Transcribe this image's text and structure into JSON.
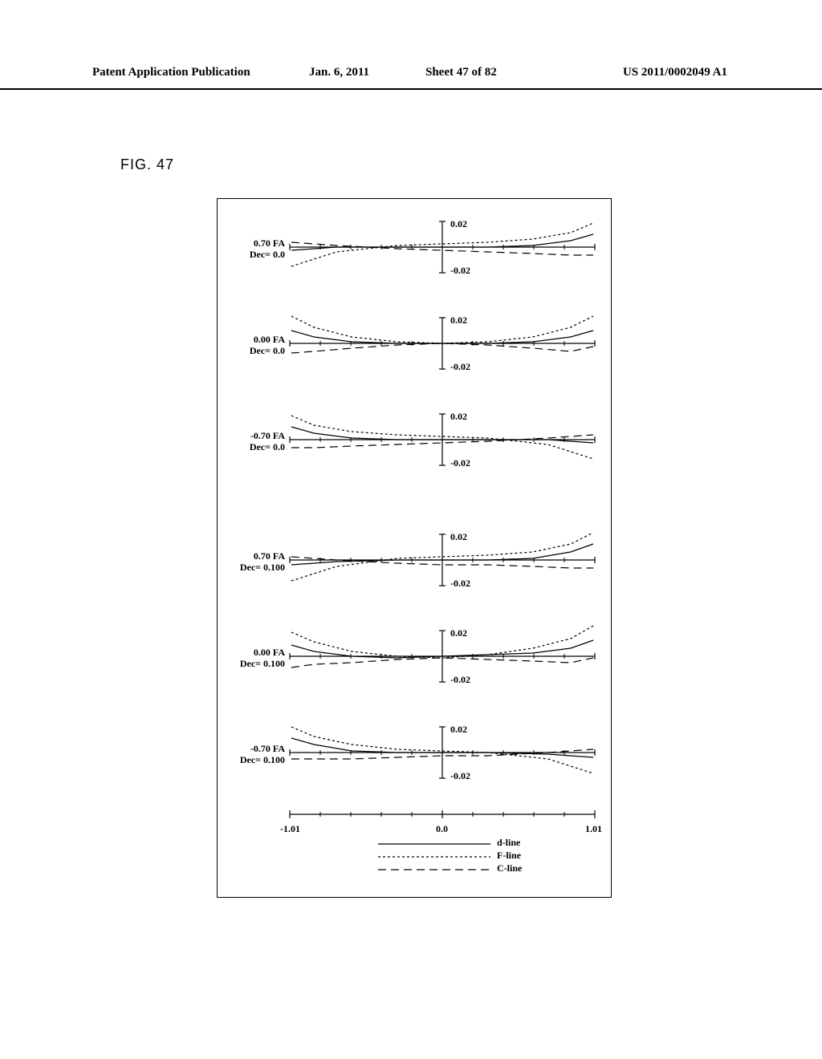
{
  "header": {
    "left": "Patent Application Publication",
    "date": "Jan. 6, 2011",
    "sheet": "Sheet 47 of 82",
    "pubno": "US 2011/0002049 A1"
  },
  "figure_label": "FIG. 47",
  "chart": {
    "x_range": [
      -1.01,
      1.01
    ],
    "y_range": [
      -0.02,
      0.02
    ],
    "y_tick_top": "0.02",
    "y_tick_bottom": "-0.02",
    "x_ticks": [
      {
        "value": -1.01,
        "label": "-1.01"
      },
      {
        "value": 0.0,
        "label": "0.0"
      },
      {
        "value": 1.01,
        "label": "1.01"
      }
    ],
    "subplots": [
      {
        "fa": "0.70 FA",
        "dec": "Dec= 0.0",
        "d": [
          [
            -1,
            -0.002
          ],
          [
            -0.7,
            0.0
          ],
          [
            -0.3,
            0.0
          ],
          [
            0,
            0.0
          ],
          [
            0.3,
            0.0
          ],
          [
            0.6,
            0.001
          ],
          [
            0.85,
            0.004
          ],
          [
            1,
            0.008
          ]
        ],
        "f": [
          [
            -1,
            -0.012
          ],
          [
            -0.7,
            -0.003
          ],
          [
            -0.3,
            0.001
          ],
          [
            0,
            0.002
          ],
          [
            0.3,
            0.003
          ],
          [
            0.6,
            0.005
          ],
          [
            0.85,
            0.009
          ],
          [
            1,
            0.015
          ]
        ],
        "c": [
          [
            -1,
            0.003
          ],
          [
            -0.7,
            0.001
          ],
          [
            -0.3,
            -0.001
          ],
          [
            0,
            -0.002
          ],
          [
            0.3,
            -0.003
          ],
          [
            0.6,
            -0.004
          ],
          [
            0.85,
            -0.005
          ],
          [
            1,
            -0.005
          ]
        ]
      },
      {
        "fa": "0.00 FA",
        "dec": "Dec= 0.0",
        "d": [
          [
            -1,
            0.008
          ],
          [
            -0.85,
            0.004
          ],
          [
            -0.6,
            0.001
          ],
          [
            -0.3,
            0.0
          ],
          [
            0,
            0.0
          ],
          [
            0.3,
            0.0
          ],
          [
            0.6,
            0.001
          ],
          [
            0.85,
            0.004
          ],
          [
            1,
            0.008
          ]
        ],
        "f": [
          [
            -1,
            0.017
          ],
          [
            -0.85,
            0.01
          ],
          [
            -0.6,
            0.004
          ],
          [
            -0.3,
            0.001
          ],
          [
            0,
            0.0
          ],
          [
            0.3,
            0.001
          ],
          [
            0.6,
            0.004
          ],
          [
            0.85,
            0.01
          ],
          [
            1,
            0.017
          ]
        ],
        "c": [
          [
            -1,
            -0.006
          ],
          [
            -0.85,
            -0.005
          ],
          [
            -0.6,
            -0.003
          ],
          [
            -0.3,
            -0.001
          ],
          [
            0,
            0.0
          ],
          [
            0.3,
            -0.001
          ],
          [
            0.6,
            -0.003
          ],
          [
            0.85,
            -0.005
          ],
          [
            1,
            -0.002
          ]
        ]
      },
      {
        "fa": "-0.70 FA",
        "dec": "Dec= 0.0",
        "d": [
          [
            -1,
            0.008
          ],
          [
            -0.85,
            0.004
          ],
          [
            -0.6,
            0.001
          ],
          [
            -0.3,
            0.0
          ],
          [
            0,
            0.0
          ],
          [
            0.3,
            0.0
          ],
          [
            0.7,
            0.0
          ],
          [
            1,
            -0.002
          ]
        ],
        "f": [
          [
            -1,
            0.015
          ],
          [
            -0.85,
            0.009
          ],
          [
            -0.6,
            0.005
          ],
          [
            -0.3,
            0.003
          ],
          [
            0,
            0.002
          ],
          [
            0.3,
            0.001
          ],
          [
            0.7,
            -0.003
          ],
          [
            1,
            -0.012
          ]
        ],
        "c": [
          [
            -1,
            -0.005
          ],
          [
            -0.85,
            -0.005
          ],
          [
            -0.6,
            -0.004
          ],
          [
            -0.3,
            -0.003
          ],
          [
            0,
            -0.002
          ],
          [
            0.3,
            -0.001
          ],
          [
            0.7,
            0.001
          ],
          [
            1,
            0.003
          ]
        ]
      },
      {
        "fa": "0.70 FA",
        "dec": "Dec= 0.100",
        "d": [
          [
            -1,
            -0.003
          ],
          [
            -0.7,
            -0.001
          ],
          [
            -0.3,
            0.0
          ],
          [
            0,
            0.0
          ],
          [
            0.3,
            0.0
          ],
          [
            0.6,
            0.001
          ],
          [
            0.85,
            0.005
          ],
          [
            1,
            0.01
          ]
        ],
        "f": [
          [
            -1,
            -0.013
          ],
          [
            -0.7,
            -0.004
          ],
          [
            -0.3,
            0.001
          ],
          [
            0,
            0.002
          ],
          [
            0.3,
            0.003
          ],
          [
            0.6,
            0.005
          ],
          [
            0.85,
            0.01
          ],
          [
            1,
            0.017
          ]
        ],
        "c": [
          [
            -1,
            0.002
          ],
          [
            -0.7,
            0.0
          ],
          [
            -0.3,
            -0.002
          ],
          [
            0,
            -0.003
          ],
          [
            0.3,
            -0.003
          ],
          [
            0.6,
            -0.004
          ],
          [
            0.85,
            -0.005
          ],
          [
            1,
            -0.005
          ]
        ]
      },
      {
        "fa": "0.00 FA",
        "dec": "Dec= 0.100",
        "d": [
          [
            -1,
            0.007
          ],
          [
            -0.85,
            0.003
          ],
          [
            -0.6,
            0.0
          ],
          [
            -0.3,
            -0.001
          ],
          [
            0,
            0.0
          ],
          [
            0.3,
            0.001
          ],
          [
            0.6,
            0.002
          ],
          [
            0.85,
            0.005
          ],
          [
            1,
            0.01
          ]
        ],
        "f": [
          [
            -1,
            0.015
          ],
          [
            -0.85,
            0.009
          ],
          [
            -0.6,
            0.003
          ],
          [
            -0.3,
            0.0
          ],
          [
            0,
            -0.001
          ],
          [
            0.3,
            0.001
          ],
          [
            0.6,
            0.005
          ],
          [
            0.85,
            0.011
          ],
          [
            1,
            0.019
          ]
        ],
        "c": [
          [
            -1,
            -0.007
          ],
          [
            -0.85,
            -0.005
          ],
          [
            -0.6,
            -0.004
          ],
          [
            -0.3,
            -0.002
          ],
          [
            0,
            -0.001
          ],
          [
            0.3,
            -0.002
          ],
          [
            0.6,
            -0.003
          ],
          [
            0.85,
            -0.004
          ],
          [
            1,
            -0.001
          ]
        ]
      },
      {
        "fa": "-0.70 FA",
        "dec": "Dec= 0.100",
        "d": [
          [
            -1,
            0.009
          ],
          [
            -0.85,
            0.005
          ],
          [
            -0.6,
            0.001
          ],
          [
            -0.3,
            0.0
          ],
          [
            0,
            0.0
          ],
          [
            0.3,
            0.0
          ],
          [
            0.7,
            -0.001
          ],
          [
            1,
            -0.003
          ]
        ],
        "f": [
          [
            -1,
            0.016
          ],
          [
            -0.85,
            0.01
          ],
          [
            -0.6,
            0.005
          ],
          [
            -0.3,
            0.002
          ],
          [
            0,
            0.001
          ],
          [
            0.3,
            0.0
          ],
          [
            0.7,
            -0.004
          ],
          [
            1,
            -0.013
          ]
        ],
        "c": [
          [
            -1,
            -0.004
          ],
          [
            -0.85,
            -0.004
          ],
          [
            -0.6,
            -0.004
          ],
          [
            -0.3,
            -0.003
          ],
          [
            0,
            -0.002
          ],
          [
            0.3,
            -0.002
          ],
          [
            0.7,
            0.0
          ],
          [
            1,
            0.002
          ]
        ]
      }
    ],
    "legend": [
      {
        "name": "d-line",
        "dash": "none"
      },
      {
        "name": "F-line",
        "dash": "3,3"
      },
      {
        "name": "C-line",
        "dash": "10,6"
      }
    ],
    "line_color": "#000000",
    "line_width": 1.2,
    "axis_color": "#000000"
  }
}
